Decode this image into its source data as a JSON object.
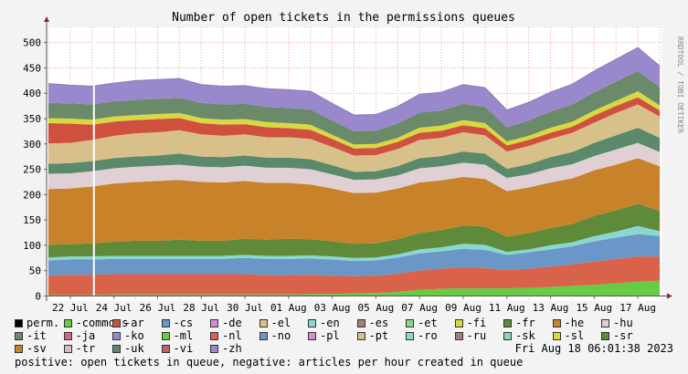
{
  "chart_data": {
    "type": "area",
    "stacked": true,
    "title": "Number of open tickets in the permissions queues",
    "watermark": "RRDTOOL / TOBI OETIKER",
    "ylim": [
      -10,
      530
    ],
    "yticks": [
      0,
      50,
      100,
      150,
      200,
      250,
      300,
      350,
      400,
      450,
      500
    ],
    "x": [
      "21 Jul",
      "22 Jul",
      "23 Jul",
      "24 Jul",
      "25 Jul",
      "26 Jul",
      "27 Jul",
      "28 Jul",
      "29 Jul",
      "30 Jul",
      "31 Jul",
      "01 Aug",
      "02 Aug",
      "03 Aug",
      "04 Aug",
      "05 Aug",
      "06 Aug",
      "07 Aug",
      "08 Aug",
      "09 Aug",
      "10 Aug",
      "11 Aug",
      "12 Aug",
      "13 Aug",
      "14 Aug",
      "15 Aug",
      "16 Aug",
      "17 Aug",
      "18 Aug"
    ],
    "xticks": [
      "22 Jul",
      "24 Jul",
      "26 Jul",
      "28 Jul",
      "30 Jul",
      "01 Aug",
      "03 Aug",
      "05 Aug",
      "07 Aug",
      "09 Aug",
      "11 Aug",
      "13 Aug",
      "15 Aug",
      "17 Aug"
    ],
    "marker_date": "23 Jul",
    "grid": true,
    "series": [
      {
        "name": "-commons",
        "color": "#66cc44",
        "values": [
          2,
          2,
          2,
          3,
          3,
          3,
          3,
          3,
          3,
          3,
          3,
          3,
          4,
          4,
          5,
          6,
          8,
          12,
          14,
          15,
          15,
          15,
          16,
          18,
          20,
          22,
          25,
          28,
          30
        ]
      },
      {
        "name": "-nl",
        "color": "#d9624a",
        "values": [
          38,
          40,
          40,
          40,
          40,
          40,
          40,
          40,
          40,
          40,
          38,
          38,
          38,
          36,
          34,
          34,
          36,
          38,
          40,
          42,
          40,
          36,
          38,
          40,
          42,
          46,
          48,
          50,
          48
        ]
      },
      {
        "name": "-cs",
        "color": "#6a96c8",
        "values": [
          30,
          30,
          30,
          30,
          30,
          30,
          30,
          30,
          30,
          32,
          32,
          32,
          32,
          32,
          30,
          30,
          32,
          34,
          34,
          36,
          36,
          30,
          32,
          34,
          36,
          40,
          42,
          44,
          40
        ]
      },
      {
        "name": "-ro",
        "color": "#88d8d0",
        "values": [
          6,
          6,
          6,
          6,
          6,
          6,
          6,
          6,
          6,
          6,
          6,
          6,
          6,
          6,
          6,
          6,
          6,
          8,
          8,
          10,
          10,
          6,
          6,
          8,
          8,
          10,
          12,
          16,
          10
        ]
      },
      {
        "name": "-fr",
        "color": "#5f8a3a",
        "values": [
          25,
          24,
          26,
          28,
          30,
          30,
          32,
          30,
          30,
          32,
          32,
          34,
          32,
          30,
          28,
          28,
          30,
          32,
          34,
          36,
          36,
          30,
          32,
          34,
          36,
          40,
          42,
          44,
          40
        ]
      },
      {
        "name": "-sv",
        "color": "#c8832a",
        "values": [
          110,
          110,
          112,
          115,
          116,
          118,
          118,
          116,
          115,
          114,
          112,
          110,
          108,
          104,
          100,
          100,
          100,
          100,
          98,
          96,
          94,
          90,
          90,
          90,
          90,
          90,
          90,
          90,
          88
        ]
      },
      {
        "name": "-hu",
        "color": "#e0d0d6",
        "values": [
          30,
          30,
          30,
          30,
          30,
          30,
          30,
          30,
          30,
          30,
          30,
          30,
          30,
          28,
          26,
          26,
          26,
          28,
          28,
          28,
          28,
          26,
          26,
          28,
          28,
          28,
          30,
          30,
          28
        ]
      },
      {
        "name": "-uk",
        "color": "#5a8a6a",
        "values": [
          20,
          20,
          20,
          20,
          20,
          20,
          22,
          20,
          20,
          20,
          20,
          20,
          20,
          18,
          16,
          16,
          18,
          20,
          20,
          22,
          22,
          18,
          20,
          22,
          24,
          26,
          28,
          30,
          28
        ]
      },
      {
        "name": "-pt",
        "color": "#d8c08a",
        "values": [
          40,
          40,
          42,
          44,
          46,
          46,
          46,
          44,
          42,
          42,
          40,
          40,
          40,
          36,
          32,
          32,
          34,
          36,
          36,
          38,
          36,
          34,
          36,
          36,
          38,
          40,
          44,
          46,
          42
        ]
      },
      {
        "name": "-ar",
        "color": "#d05040",
        "values": [
          40,
          38,
          30,
          28,
          26,
          26,
          24,
          22,
          22,
          20,
          20,
          18,
          18,
          16,
          14,
          14,
          14,
          14,
          14,
          14,
          14,
          12,
          12,
          12,
          12,
          14,
          14,
          14,
          12
        ]
      },
      {
        "name": "-fi",
        "color": "#d8d840",
        "values": [
          10,
          10,
          10,
          10,
          10,
          10,
          10,
          10,
          10,
          10,
          10,
          10,
          10,
          8,
          8,
          8,
          8,
          10,
          10,
          10,
          10,
          8,
          8,
          10,
          10,
          10,
          10,
          12,
          10
        ]
      },
      {
        "name": "-it",
        "color": "#6a8a6a",
        "values": [
          30,
          30,
          30,
          30,
          30,
          30,
          30,
          30,
          30,
          30,
          30,
          30,
          30,
          28,
          26,
          26,
          28,
          30,
          30,
          32,
          32,
          28,
          30,
          32,
          34,
          36,
          38,
          40,
          36
        ]
      },
      {
        "name": "-zh",
        "color": "#9a88cc",
        "values": [
          38,
          36,
          36,
          36,
          38,
          38,
          38,
          36,
          36,
          36,
          36,
          36,
          36,
          34,
          32,
          32,
          34,
          36,
          36,
          38,
          38,
          34,
          36,
          38,
          40,
          42,
          44,
          46,
          42
        ]
      }
    ],
    "legend": [
      "perm.",
      "-commons",
      "-ar",
      "-cs",
      "-de",
      "-el",
      "-en",
      "-es",
      "-et",
      "-fi",
      "-fr",
      "-he",
      "-hu",
      "-it",
      "-ja",
      "-ko",
      "-ml",
      "-nl",
      "-no",
      "-pl",
      "-pt",
      "-ro",
      "-ru",
      "-sk",
      "-sl",
      "-sr",
      "-sv",
      "-tr",
      "-uk",
      "-vi",
      "-zh"
    ],
    "legend_colors": [
      "#000000",
      "#66cc44",
      "#d05040",
      "#6a96c8",
      "#d88ad0",
      "#d8c08a",
      "#88d8d0",
      "#a08078",
      "#88d888",
      "#d8d840",
      "#5f8a3a",
      "#c8832a",
      "#e0d0d6",
      "#6a8a6a",
      "#d06888",
      "#9a88cc",
      "#66cc44",
      "#d9624a",
      "#6a96c8",
      "#d88ad0",
      "#d8c08a",
      "#88d8d0",
      "#a08078",
      "#88d8a8",
      "#d8d840",
      "#5f8a3a",
      "#c8832a",
      "#d0c0c0",
      "#5a8a6a",
      "#c06070",
      "#9a88cc"
    ],
    "timestamp": "Fri Aug 18 06:01:38 2023",
    "footer": "positive: open tickets in queue, negative: articles per hour created in queue"
  }
}
